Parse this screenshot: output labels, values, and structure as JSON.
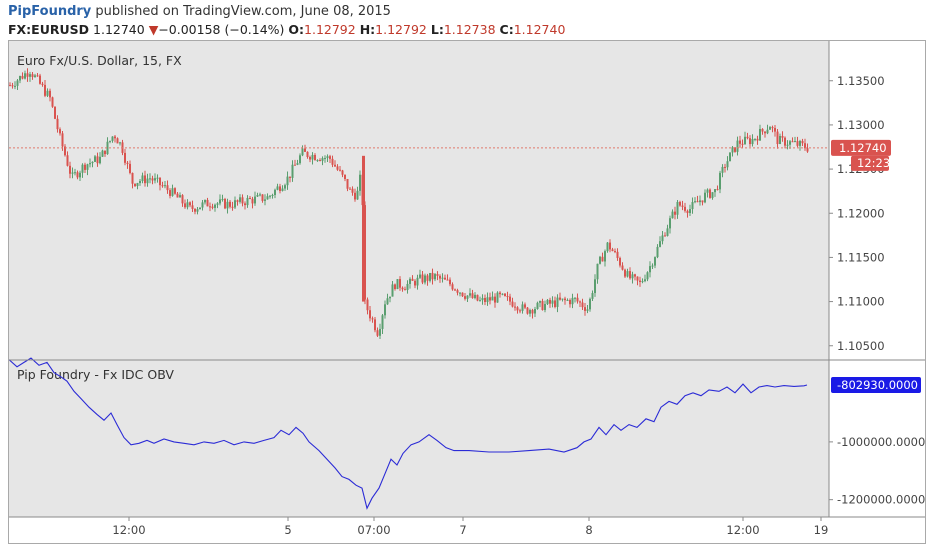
{
  "header": {
    "brand": "PipFoundry",
    "publish_text": "published on TradingView.com, June 08, 2015"
  },
  "quote": {
    "symbol": "FX:EURUSD",
    "last": "1.12740",
    "change_arrow": "▼",
    "change": "−0.00158 (−0.14%)",
    "open_label": "O:",
    "open": "1.12792",
    "high_label": "H:",
    "high": "1.12792",
    "low_label": "L:",
    "low": "1.12738",
    "close_label": "C:",
    "close": "1.12740"
  },
  "colors": {
    "up": "#5a9e6f",
    "down": "#d9534f",
    "obv_line": "#2b2bd6",
    "price_badge": "#d9534f",
    "obv_badge": "#1a1ae6",
    "panel_bg": "#e6e6e6"
  },
  "chart_data": [
    {
      "type": "candlestick",
      "title": "Euro Fx/U.S. Dollar, 15, FX",
      "ylim": [
        1.1035,
        1.1395
      ],
      "y_ticks": [
        "1.13500",
        "1.13000",
        "1.12500",
        "1.12000",
        "1.11500",
        "1.11000",
        "1.10500"
      ],
      "y_tick_values": [
        1.135,
        1.13,
        1.125,
        1.12,
        1.115,
        1.11,
        1.105
      ],
      "x_ticks": [
        "12:00",
        "5",
        "07:00",
        "7",
        "8",
        "12:00",
        "19"
      ],
      "last_price_label": "1.12740",
      "last_price": 1.1274,
      "countdown_label": "12:23",
      "anchors": [
        [
          0,
          1.1345
        ],
        [
          20,
          1.1362
        ],
        [
          40,
          1.133
        ],
        [
          50,
          1.1285
        ],
        [
          62,
          1.124
        ],
        [
          75,
          1.1255
        ],
        [
          90,
          1.1262
        ],
        [
          104,
          1.129
        ],
        [
          112,
          1.1275
        ],
        [
          122,
          1.1235
        ],
        [
          140,
          1.124
        ],
        [
          160,
          1.1225
        ],
        [
          180,
          1.1205
        ],
        [
          200,
          1.1212
        ],
        [
          220,
          1.121
        ],
        [
          240,
          1.1215
        ],
        [
          258,
          1.1218
        ],
        [
          278,
          1.124
        ],
        [
          292,
          1.1268
        ],
        [
          305,
          1.1265
        ],
        [
          320,
          1.1262
        ],
        [
          333,
          1.124
        ],
        [
          340,
          1.1225
        ],
        [
          347,
          1.122
        ],
        [
          352,
          1.125
        ],
        [
          354,
          1.11
        ],
        [
          360,
          1.1085
        ],
        [
          368,
          1.1065
        ],
        [
          375,
          1.11
        ],
        [
          385,
          1.112
        ],
        [
          395,
          1.1118
        ],
        [
          410,
          1.1125
        ],
        [
          425,
          1.1128
        ],
        [
          440,
          1.112
        ],
        [
          455,
          1.1108
        ],
        [
          470,
          1.11
        ],
        [
          490,
          1.1105
        ],
        [
          505,
          1.1098
        ],
        [
          515,
          1.109
        ],
        [
          530,
          1.1095
        ],
        [
          550,
          1.11
        ],
        [
          565,
          1.1102
        ],
        [
          578,
          1.1092
        ],
        [
          588,
          1.114
        ],
        [
          598,
          1.1165
        ],
        [
          608,
          1.1148
        ],
        [
          618,
          1.1128
        ],
        [
          630,
          1.112
        ],
        [
          640,
          1.114
        ],
        [
          655,
          1.118
        ],
        [
          668,
          1.121
        ],
        [
          680,
          1.1205
        ],
        [
          695,
          1.122
        ],
        [
          705,
          1.1225
        ],
        [
          715,
          1.1255
        ],
        [
          728,
          1.128
        ],
        [
          742,
          1.1283
        ],
        [
          760,
          1.13
        ],
        [
          768,
          1.1282
        ],
        [
          780,
          1.128
        ],
        [
          793,
          1.1276
        ],
        [
          798,
          1.1274
        ]
      ]
    },
    {
      "type": "line",
      "title": "Pip Foundry - Fx IDC OBV",
      "ylim": [
        -1260000,
        -720000
      ],
      "y_ticks": [
        "-1000000.0000",
        "-1200000.0000"
      ],
      "y_tick_values": [
        -1000000,
        -1200000
      ],
      "last_value_label": "-802930.0000",
      "last_value": -802930,
      "points": [
        [
          0,
          -715000
        ],
        [
          8,
          -740000
        ],
        [
          15,
          -725000
        ],
        [
          22,
          -710000
        ],
        [
          30,
          -735000
        ],
        [
          38,
          -725000
        ],
        [
          45,
          -760000
        ],
        [
          52,
          -775000
        ],
        [
          58,
          -790000
        ],
        [
          65,
          -825000
        ],
        [
          72,
          -850000
        ],
        [
          80,
          -880000
        ],
        [
          88,
          -905000
        ],
        [
          95,
          -925000
        ],
        [
          102,
          -900000
        ],
        [
          108,
          -940000
        ],
        [
          115,
          -985000
        ],
        [
          122,
          -1010000
        ],
        [
          130,
          -1005000
        ],
        [
          138,
          -995000
        ],
        [
          145,
          -1005000
        ],
        [
          155,
          -990000
        ],
        [
          165,
          -1000000
        ],
        [
          175,
          -1005000
        ],
        [
          185,
          -1010000
        ],
        [
          195,
          -1000000
        ],
        [
          205,
          -1005000
        ],
        [
          215,
          -995000
        ],
        [
          225,
          -1010000
        ],
        [
          235,
          -1000000
        ],
        [
          245,
          -1005000
        ],
        [
          255,
          -995000
        ],
        [
          265,
          -985000
        ],
        [
          272,
          -960000
        ],
        [
          280,
          -975000
        ],
        [
          287,
          -950000
        ],
        [
          294,
          -970000
        ],
        [
          300,
          -1000000
        ],
        [
          310,
          -1030000
        ],
        [
          318,
          -1060000
        ],
        [
          326,
          -1090000
        ],
        [
          333,
          -1120000
        ],
        [
          340,
          -1130000
        ],
        [
          347,
          -1150000
        ],
        [
          353,
          -1160000
        ],
        [
          358,
          -1230000
        ],
        [
          363,
          -1195000
        ],
        [
          370,
          -1160000
        ],
        [
          376,
          -1110000
        ],
        [
          382,
          -1060000
        ],
        [
          388,
          -1080000
        ],
        [
          394,
          -1040000
        ],
        [
          402,
          -1010000
        ],
        [
          410,
          -1000000
        ],
        [
          420,
          -975000
        ],
        [
          428,
          -995000
        ],
        [
          437,
          -1020000
        ],
        [
          445,
          -1030000
        ],
        [
          460,
          -1030000
        ],
        [
          480,
          -1035000
        ],
        [
          500,
          -1035000
        ],
        [
          520,
          -1030000
        ],
        [
          540,
          -1025000
        ],
        [
          555,
          -1035000
        ],
        [
          568,
          -1020000
        ],
        [
          575,
          -1000000
        ],
        [
          582,
          -990000
        ],
        [
          590,
          -950000
        ],
        [
          597,
          -975000
        ],
        [
          605,
          -940000
        ],
        [
          612,
          -960000
        ],
        [
          620,
          -940000
        ],
        [
          628,
          -950000
        ],
        [
          637,
          -920000
        ],
        [
          645,
          -930000
        ],
        [
          652,
          -880000
        ],
        [
          660,
          -860000
        ],
        [
          668,
          -870000
        ],
        [
          676,
          -840000
        ],
        [
          684,
          -830000
        ],
        [
          692,
          -840000
        ],
        [
          700,
          -820000
        ],
        [
          710,
          -825000
        ],
        [
          718,
          -810000
        ],
        [
          726,
          -830000
        ],
        [
          734,
          -800000
        ],
        [
          742,
          -830000
        ],
        [
          750,
          -810000
        ],
        [
          758,
          -805000
        ],
        [
          766,
          -810000
        ],
        [
          775,
          -805000
        ],
        [
          785,
          -808000
        ],
        [
          795,
          -806000
        ],
        [
          798,
          -802930
        ]
      ]
    }
  ]
}
